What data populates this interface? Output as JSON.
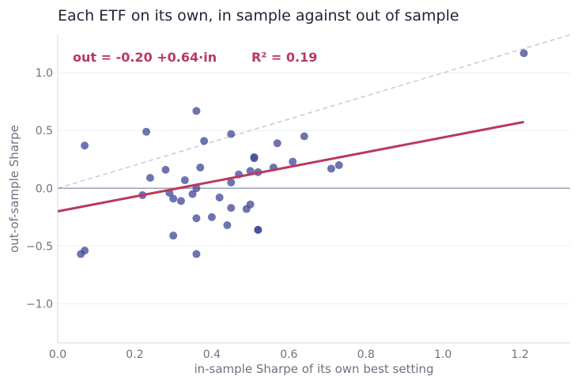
{
  "chart_data": {
    "type": "scatter",
    "title": "Each ETF on its own, in sample against out of sample",
    "xlabel": "in-sample Sharpe of its own best setting",
    "ylabel": "out-of-sample Sharpe",
    "xlim": [
      0.0,
      1.33
    ],
    "ylim": [
      -1.34,
      1.33
    ],
    "x_ticks": [
      0.0,
      0.2,
      0.4,
      0.6,
      0.8,
      1.0,
      1.2
    ],
    "x_tick_labels": [
      "0.0",
      "0.2",
      "0.4",
      "0.6",
      "0.8",
      "1.0",
      "1.2"
    ],
    "y_ticks": [
      -1.0,
      -0.5,
      0.0,
      0.5,
      1.0
    ],
    "y_tick_labels": [
      "−1.0",
      "−0.5",
      "0.0",
      "0.5",
      "1.0"
    ],
    "grid": true,
    "annotations": {
      "equation": "out = -0.20 +0.64·in",
      "r2": "R² = 0.19"
    },
    "fit_line": {
      "intercept": -0.2,
      "slope": 0.64,
      "x_range": [
        0.0,
        1.21
      ]
    },
    "reference_line": {
      "type": "y=x"
    },
    "colors": {
      "points": "#3d4594",
      "fit": "#b83a5e",
      "reference": "#c5c9dc",
      "zero": "#9aa3b5",
      "grid": "#ebedf2"
    },
    "points": [
      {
        "x": 0.07,
        "y": 0.37
      },
      {
        "x": 0.06,
        "y": -0.57
      },
      {
        "x": 0.07,
        "y": -0.54
      },
      {
        "x": 0.22,
        "y": -0.06
      },
      {
        "x": 0.23,
        "y": 0.49
      },
      {
        "x": 0.24,
        "y": 0.09
      },
      {
        "x": 0.28,
        "y": 0.16
      },
      {
        "x": 0.29,
        "y": -0.04
      },
      {
        "x": 0.3,
        "y": -0.09
      },
      {
        "x": 0.3,
        "y": -0.41
      },
      {
        "x": 0.32,
        "y": -0.11
      },
      {
        "x": 0.33,
        "y": 0.07
      },
      {
        "x": 0.35,
        "y": -0.05
      },
      {
        "x": 0.36,
        "y": 0.67
      },
      {
        "x": 0.36,
        "y": -0.26
      },
      {
        "x": 0.36,
        "y": -0.57
      },
      {
        "x": 0.36,
        "y": 0.0
      },
      {
        "x": 0.37,
        "y": 0.18
      },
      {
        "x": 0.38,
        "y": 0.41
      },
      {
        "x": 0.4,
        "y": -0.25
      },
      {
        "x": 0.42,
        "y": -0.08
      },
      {
        "x": 0.44,
        "y": -0.32
      },
      {
        "x": 0.45,
        "y": 0.47
      },
      {
        "x": 0.45,
        "y": 0.05
      },
      {
        "x": 0.45,
        "y": -0.17
      },
      {
        "x": 0.47,
        "y": 0.12
      },
      {
        "x": 0.49,
        "y": -0.18
      },
      {
        "x": 0.5,
        "y": 0.15
      },
      {
        "x": 0.5,
        "y": -0.14
      },
      {
        "x": 0.51,
        "y": 0.27
      },
      {
        "x": 0.51,
        "y": 0.26
      },
      {
        "x": 0.52,
        "y": 0.14
      },
      {
        "x": 0.52,
        "y": -0.36
      },
      {
        "x": 0.52,
        "y": -0.36
      },
      {
        "x": 0.56,
        "y": 0.18
      },
      {
        "x": 0.57,
        "y": 0.39
      },
      {
        "x": 0.61,
        "y": 0.23
      },
      {
        "x": 0.64,
        "y": 0.45
      },
      {
        "x": 0.71,
        "y": 0.17
      },
      {
        "x": 0.73,
        "y": 0.2
      },
      {
        "x": 1.21,
        "y": 1.17
      }
    ]
  }
}
